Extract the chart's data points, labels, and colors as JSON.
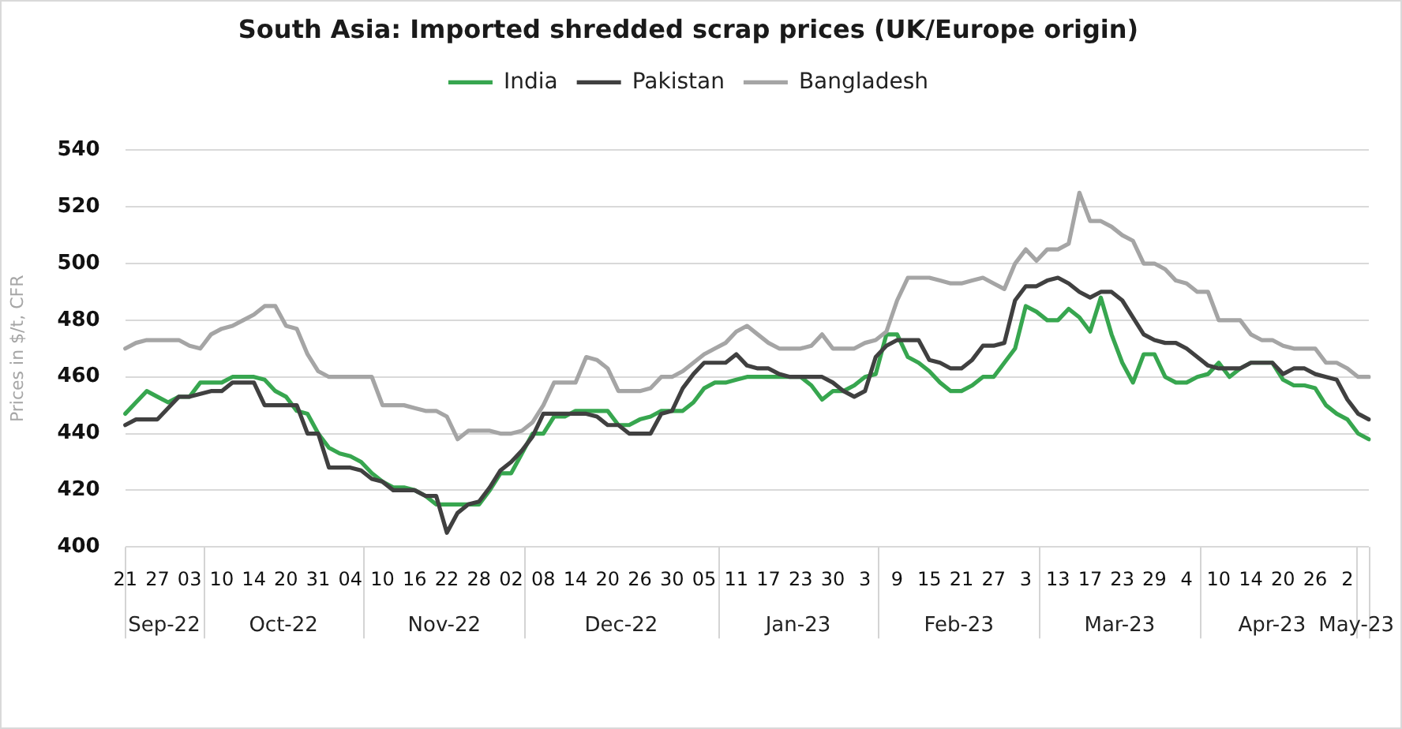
{
  "chart_data": {
    "type": "line",
    "title": "South Asia: Imported shredded scrap prices (UK/Europe origin)",
    "ylabel": "Prices in $/t, CFR",
    "categories": [
      "21",
      null,
      null,
      "27",
      null,
      null,
      "03",
      null,
      null,
      "10",
      null,
      null,
      "14",
      null,
      null,
      "20",
      null,
      null,
      "31",
      null,
      null,
      "04",
      null,
      null,
      "10",
      null,
      null,
      "16",
      null,
      null,
      "22",
      null,
      null,
      "28",
      null,
      null,
      "02",
      null,
      null,
      "08",
      null,
      null,
      "14",
      null,
      null,
      "20",
      null,
      null,
      "26",
      null,
      null,
      "30",
      null,
      null,
      "05",
      null,
      null,
      "11",
      null,
      null,
      "17",
      null,
      null,
      "23",
      null,
      null,
      "30",
      null,
      null,
      "3",
      null,
      null,
      "9",
      null,
      null,
      "15",
      null,
      null,
      "21",
      null,
      null,
      "27",
      null,
      null,
      "3",
      null,
      null,
      "13",
      null,
      null,
      "17",
      null,
      null,
      "23",
      null,
      null,
      "29",
      null,
      null,
      "4",
      null,
      null,
      "10",
      null,
      null,
      "14",
      null,
      null,
      "20",
      null,
      null,
      "26",
      null,
      null,
      "2",
      null,
      null
    ],
    "series": [
      {
        "name": "India",
        "color": "#37a64f",
        "values": [
          447,
          451,
          455,
          453,
          451,
          453,
          453,
          458,
          458,
          458,
          460,
          460,
          460,
          459,
          455,
          453,
          448,
          447,
          440,
          435,
          433,
          432,
          430,
          426,
          423,
          421,
          421,
          420,
          418,
          415,
          415,
          415,
          415,
          415,
          420,
          426,
          426,
          433,
          440,
          440,
          446,
          446,
          448,
          448,
          448,
          448,
          443,
          443,
          445,
          446,
          448,
          448,
          448,
          451,
          456,
          458,
          458,
          459,
          460,
          460,
          460,
          460,
          460,
          460,
          457,
          452,
          455,
          455,
          457,
          460,
          461,
          475,
          475,
          467,
          465,
          462,
          458,
          455,
          455,
          457,
          460,
          460,
          465,
          470,
          485,
          483,
          480,
          480,
          484,
          481,
          476,
          488,
          475,
          465,
          458,
          468,
          468,
          460,
          458,
          458,
          460,
          461,
          465,
          460,
          463,
          465,
          465,
          465,
          459,
          457,
          457,
          456,
          450,
          447,
          445,
          440,
          438
        ]
      },
      {
        "name": "Pakistan",
        "color": "#404040",
        "values": [
          443,
          445,
          445,
          445,
          449,
          453,
          453,
          454,
          455,
          455,
          458,
          458,
          458,
          450,
          450,
          450,
          450,
          440,
          440,
          428,
          428,
          428,
          427,
          424,
          423,
          420,
          420,
          420,
          418,
          418,
          405,
          412,
          415,
          416,
          421,
          427,
          430,
          434,
          439,
          447,
          447,
          447,
          447,
          447,
          446,
          443,
          443,
          440,
          440,
          440,
          447,
          448,
          456,
          461,
          465,
          465,
          465,
          468,
          464,
          463,
          463,
          461,
          460,
          460,
          460,
          460,
          458,
          455,
          453,
          455,
          467,
          471,
          473,
          473,
          473,
          466,
          465,
          463,
          463,
          466,
          471,
          471,
          472,
          487,
          492,
          492,
          494,
          495,
          493,
          490,
          488,
          490,
          490,
          487,
          481,
          475,
          473,
          472,
          472,
          470,
          467,
          464,
          463,
          463,
          463,
          465,
          465,
          465,
          461,
          463,
          463,
          461,
          460,
          459,
          452,
          447,
          445
        ]
      },
      {
        "name": "Bangladesh",
        "color": "#a5a5a5",
        "values": [
          470,
          472,
          473,
          473,
          473,
          473,
          471,
          470,
          475,
          477,
          478,
          480,
          482,
          485,
          485,
          478,
          477,
          468,
          462,
          460,
          460,
          460,
          460,
          460,
          450,
          450,
          450,
          449,
          448,
          448,
          446,
          438,
          441,
          441,
          441,
          440,
          440,
          441,
          444,
          450,
          458,
          458,
          458,
          467,
          466,
          463,
          455,
          455,
          455,
          456,
          460,
          460,
          462,
          465,
          468,
          470,
          472,
          476,
          478,
          475,
          472,
          470,
          470,
          470,
          471,
          475,
          470,
          470,
          470,
          472,
          473,
          476,
          487,
          495,
          495,
          495,
          494,
          493,
          493,
          494,
          495,
          493,
          491,
          500,
          505,
          501,
          505,
          505,
          507,
          525,
          515,
          515,
          513,
          510,
          508,
          500,
          500,
          498,
          494,
          493,
          490,
          490,
          480,
          480,
          480,
          475,
          473,
          473,
          471,
          470,
          470,
          470,
          465,
          465,
          463,
          460,
          460
        ]
      }
    ],
    "ylim": [
      400,
      540
    ],
    "yticks": [
      400,
      420,
      440,
      460,
      480,
      500,
      520,
      540
    ],
    "grid": "y",
    "legend": "top",
    "marker": "none",
    "line_style": "solid",
    "annotations": [
      "Sep-22",
      "Oct-22",
      "Nov-22",
      "Dec-22",
      "Jan-23",
      "Feb-23",
      "Mar-23",
      "Apr-23",
      "May-23"
    ]
  }
}
